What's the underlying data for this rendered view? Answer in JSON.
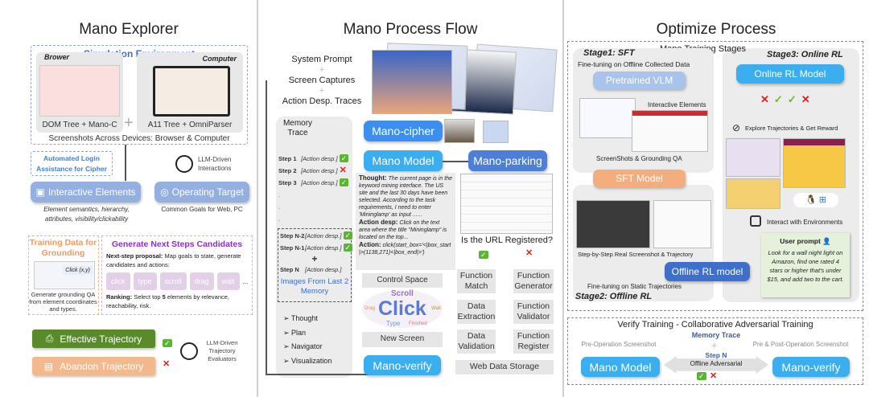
{
  "explorer": {
    "title": "Mano Explorer",
    "sim_env": "Simulation Environment",
    "browser_label": "Brower",
    "computer_label": "Computer",
    "browser_caption": "DOM Tree + Mano-C",
    "computer_caption": "A11 Tree + OmniParser",
    "plus": "+",
    "devices_caption": "Screenshots Across Devices: Browser & Computer",
    "auto_login": "Automated Login Assistance for Cipher",
    "llm_interactions": "LLM-Driven Interactions",
    "interactive_elements": "Interactive Elements",
    "interactive_desc": "Element semantics, hierarchy, attributes, visibility/clickability",
    "operating_target": "Operating Target",
    "operating_desc": "Common Goals for Web, PC",
    "training_title": "Training Data for Grounding",
    "click_label": "Click (x,y)",
    "training_desc": "Generate grounding QA from element coordinates and types.",
    "gen_title": "Generate Next Steps Candidates",
    "proposal_label": "Next-step proposal:",
    "proposal_text": "Map goals to state, generate candidates and actions:",
    "actions": [
      "click",
      "type",
      "scroll",
      "drag",
      "wait"
    ],
    "ellipsis": "...",
    "ranking_label": "Ranking:",
    "ranking_text_a": "Select top ",
    "ranking_num": "5",
    "ranking_text_b": " elements by relevance, reachability, risk.",
    "effective": "Effective Trajectory",
    "abandon": "Abandon Trajectory",
    "evaluators": "LLM-Driven Trajectory Evaluators"
  },
  "flow": {
    "title": "Mano Process Flow",
    "inputs": [
      "System Prompt",
      "Screen Captures",
      "Action Desp. Traces"
    ],
    "memory_title": "Memory Trace",
    "steps": [
      {
        "step": "Step 1",
        "desc": "[Action desp.]",
        "status": "ok"
      },
      {
        "step": "Step 2",
        "desc": "[Action desp.]",
        "status": "fail"
      },
      {
        "step": "Step 3",
        "desc": "[Action desp.]",
        "status": "ok"
      }
    ],
    "dots": ".",
    "recent_steps": [
      {
        "step": "Step N-2",
        "desc": "[Action desp.]",
        "status": "ok"
      },
      {
        "step": "Step N-1",
        "desc": "[Action desp.]",
        "status": "ok"
      },
      {
        "step": "Step N",
        "desc": "[Action desp.]",
        "status": ""
      }
    ],
    "images_memory": "Images From Last 2 Memory",
    "outputs": [
      "Thought",
      "Plan",
      "Navigator",
      "Visualization"
    ],
    "mano_cipher": "Mano-cipher",
    "mano_model": "Mano Model",
    "mano_parking": "Mano-parking",
    "thought_label": "Thought:",
    "thought_text": "The current page is in the keyword mining interface. The US site and the last 30 days have been selected. According to the task requirements, I need to enter 'Mininglamp' as input ......",
    "action_desp_label": "Action desp:",
    "action_desp_text": "Click on the text area where the title \"Mininglamp\" is located on the top...",
    "action_label": "Action:",
    "action_text": "click(start_box='<|box_start|>(1138,271)<|box_end|>')",
    "control_space": "Control Space",
    "wordcloud": [
      "Scroll",
      "Click",
      "Type",
      "Finished",
      "Drag",
      "Wait"
    ],
    "new_screen": "New Screen",
    "mano_verify": "Mano-verify",
    "url_question": "Is the URL Registered?",
    "function_match": "Function Match",
    "function_generator": "Function Generator",
    "data_extraction": "Data Extraction",
    "function_validator": "Function Validator",
    "data_validation": "Data Validation",
    "function_register": "Function Register",
    "web_storage": "Web Data Storage"
  },
  "optimize": {
    "title": "Optimize Process",
    "stages_title": "Mano Training Stages",
    "stage1": "Stage1: SFT",
    "stage1_desc": "Fine-tuning on  Offline Collected Data",
    "pretrained": "Pretrained VLM",
    "interactive_elements": "Interactive Elements",
    "grounding_qa": "ScreenShots & Grounding QA",
    "sft_model": "SFT Model",
    "real_traj": "Step-by-Step Real Screenshot & Trajectory",
    "offline_rl_model": "Offline RL model",
    "static_traj": "Fine-tuning on Static Trajectories",
    "stage2": "Stage2: Offline RL",
    "stage3": "Stage3: Online RL",
    "online_rl_model": "Online RL Model",
    "explore": "Explore Trajectories & Get Reward",
    "os_icons": [
      "linux-icon",
      "apple-icon",
      "windows-icon"
    ],
    "interact": "Interact with Environments",
    "user_prompt_label": "User prompt",
    "user_prompt": "Look for a wall night light on Amazon, find one rated 4 stars or higher that's under $15, and add two to the cart.",
    "verify_title": "Verify Training - Collaborative Adversarial Training",
    "pre_op": "Pre-Operation Screenshot",
    "pre_post_op": "Pre & Post-Operation Screenshot",
    "memory_trace": "Memory Trace",
    "step_n": "Step N",
    "offline_adv": "Offline Adversarial",
    "mano_model": "Mano Model",
    "mano_verify": "Mano-verify"
  },
  "colors": {
    "blue": "#3d9be9",
    "lightblue": "#94b8e6",
    "orange": "#f4ad7c",
    "green": "#5b8a2c",
    "purple": "#8a2fc8",
    "darkblue": "#3f6fc8"
  }
}
